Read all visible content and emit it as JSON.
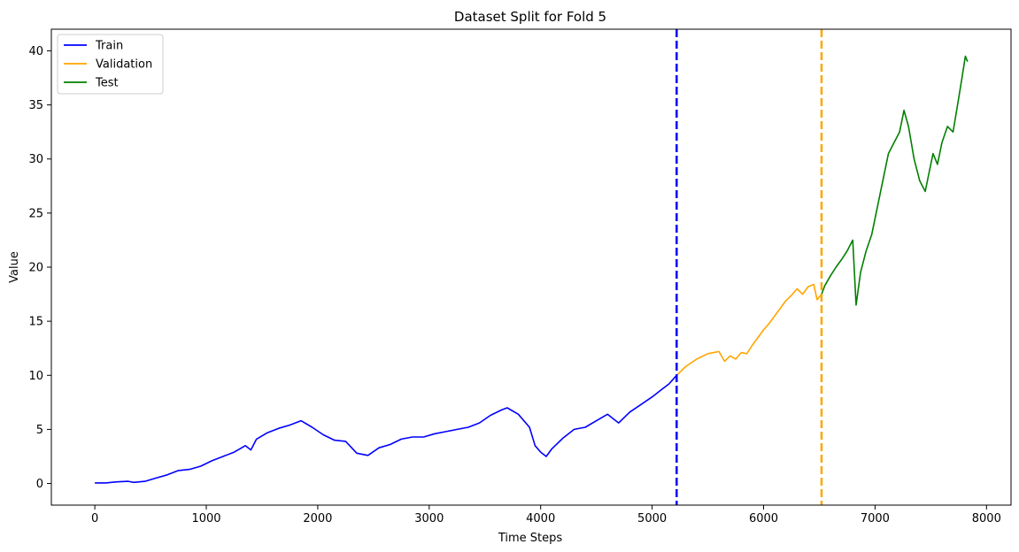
{
  "chart_data": {
    "type": "line",
    "title": "Dataset Split for Fold 5",
    "xlabel": "Time Steps",
    "ylabel": "Value",
    "xlim": [
      -390,
      8220
    ],
    "ylim": [
      -2.0,
      42.0
    ],
    "xticks": [
      0,
      1000,
      2000,
      3000,
      4000,
      5000,
      6000,
      7000,
      8000
    ],
    "yticks": [
      0,
      5,
      10,
      15,
      20,
      25,
      30,
      35,
      40
    ],
    "grid": false,
    "legend_position": "top-left",
    "series": [
      {
        "name": "Train",
        "color": "#0000ff",
        "points": [
          [
            0,
            0.05
          ],
          [
            100,
            0.05
          ],
          [
            200,
            0.15
          ],
          [
            300,
            0.2
          ],
          [
            350,
            0.1
          ],
          [
            450,
            0.2
          ],
          [
            550,
            0.5
          ],
          [
            650,
            0.8
          ],
          [
            750,
            1.2
          ],
          [
            850,
            1.3
          ],
          [
            950,
            1.6
          ],
          [
            1050,
            2.1
          ],
          [
            1150,
            2.5
          ],
          [
            1250,
            2.9
          ],
          [
            1350,
            3.5
          ],
          [
            1400,
            3.1
          ],
          [
            1450,
            4.1
          ],
          [
            1550,
            4.7
          ],
          [
            1650,
            5.1
          ],
          [
            1750,
            5.4
          ],
          [
            1850,
            5.8
          ],
          [
            1950,
            5.2
          ],
          [
            2050,
            4.5
          ],
          [
            2150,
            4.0
          ],
          [
            2250,
            3.9
          ],
          [
            2350,
            2.8
          ],
          [
            2450,
            2.6
          ],
          [
            2550,
            3.3
          ],
          [
            2650,
            3.6
          ],
          [
            2750,
            4.1
          ],
          [
            2850,
            4.3
          ],
          [
            2950,
            4.3
          ],
          [
            3050,
            4.6
          ],
          [
            3150,
            4.8
          ],
          [
            3250,
            5.0
          ],
          [
            3350,
            5.2
          ],
          [
            3450,
            5.6
          ],
          [
            3550,
            6.3
          ],
          [
            3650,
            6.8
          ],
          [
            3700,
            7.0
          ],
          [
            3800,
            6.4
          ],
          [
            3900,
            5.2
          ],
          [
            3950,
            3.5
          ],
          [
            4000,
            2.9
          ],
          [
            4050,
            2.5
          ],
          [
            4100,
            3.2
          ],
          [
            4200,
            4.2
          ],
          [
            4300,
            5.0
          ],
          [
            4400,
            5.2
          ],
          [
            4500,
            5.8
          ],
          [
            4600,
            6.4
          ],
          [
            4650,
            6.0
          ],
          [
            4700,
            5.6
          ],
          [
            4800,
            6.6
          ],
          [
            4900,
            7.3
          ],
          [
            5000,
            8.0
          ],
          [
            5100,
            8.8
          ],
          [
            5150,
            9.2
          ],
          [
            5220,
            10.0
          ]
        ]
      },
      {
        "name": "Validation",
        "color": "#ffa500",
        "points": [
          [
            5220,
            10.0
          ],
          [
            5300,
            10.8
          ],
          [
            5400,
            11.5
          ],
          [
            5500,
            12.0
          ],
          [
            5600,
            12.2
          ],
          [
            5650,
            11.3
          ],
          [
            5700,
            11.8
          ],
          [
            5750,
            11.5
          ],
          [
            5800,
            12.1
          ],
          [
            5850,
            12.0
          ],
          [
            5900,
            12.8
          ],
          [
            5950,
            13.5
          ],
          [
            6000,
            14.2
          ],
          [
            6050,
            14.8
          ],
          [
            6100,
            15.5
          ],
          [
            6150,
            16.2
          ],
          [
            6200,
            16.9
          ],
          [
            6250,
            17.4
          ],
          [
            6300,
            18.0
          ],
          [
            6350,
            17.5
          ],
          [
            6400,
            18.2
          ],
          [
            6450,
            18.4
          ],
          [
            6480,
            17.0
          ],
          [
            6520,
            17.5
          ]
        ]
      },
      {
        "name": "Test",
        "color": "#008000",
        "points": [
          [
            6520,
            17.5
          ],
          [
            6550,
            18.3
          ],
          [
            6600,
            19.2
          ],
          [
            6650,
            20.0
          ],
          [
            6700,
            20.7
          ],
          [
            6750,
            21.5
          ],
          [
            6800,
            22.5
          ],
          [
            6830,
            16.5
          ],
          [
            6870,
            19.5
          ],
          [
            6920,
            21.5
          ],
          [
            6970,
            23.0
          ],
          [
            7020,
            25.5
          ],
          [
            7070,
            28.0
          ],
          [
            7120,
            30.5
          ],
          [
            7170,
            31.5
          ],
          [
            7220,
            32.5
          ],
          [
            7260,
            34.5
          ],
          [
            7300,
            33.0
          ],
          [
            7350,
            30.0
          ],
          [
            7400,
            28.0
          ],
          [
            7450,
            27.0
          ],
          [
            7480,
            28.5
          ],
          [
            7520,
            30.5
          ],
          [
            7560,
            29.5
          ],
          [
            7600,
            31.5
          ],
          [
            7650,
            33.0
          ],
          [
            7700,
            32.5
          ],
          [
            7740,
            35.0
          ],
          [
            7780,
            37.5
          ],
          [
            7810,
            39.5
          ],
          [
            7830,
            39.0
          ]
        ]
      }
    ],
    "vlines": [
      {
        "x": 5220,
        "color": "#0000ff",
        "style": "dashed"
      },
      {
        "x": 6520,
        "color": "#ffa500",
        "style": "dashed"
      }
    ]
  }
}
